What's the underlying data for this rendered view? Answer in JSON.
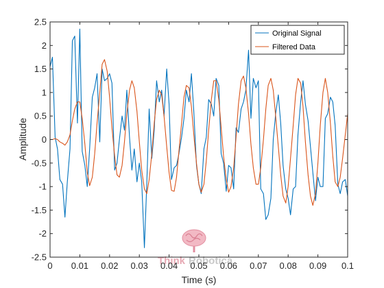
{
  "chart_data": {
    "type": "line",
    "title": "",
    "xlabel": "Time (s)",
    "ylabel": "Amplitude",
    "xlim": [
      0,
      0.1
    ],
    "ylim": [
      -2.5,
      2.5
    ],
    "xticks": [
      0,
      0.01,
      0.02,
      0.03,
      0.04,
      0.05,
      0.06,
      0.07,
      0.08,
      0.09,
      0.1
    ],
    "xtick_labels": [
      "0",
      "0.01",
      "0.02",
      "0.03",
      "0.04",
      "0.05",
      "0.06",
      "0.07",
      "0.08",
      "0.09",
      "0.1"
    ],
    "yticks": [
      -2.5,
      -2,
      -1.5,
      -1,
      -0.5,
      0,
      0.5,
      1,
      1.5,
      2,
      2.5
    ],
    "ytick_labels": [
      "-2.5",
      "-2",
      "-1.5",
      "-1",
      "-0.5",
      "0",
      "0.5",
      "1",
      "1.5",
      "2",
      "2.5"
    ],
    "grid": false,
    "legend_position": "top-right",
    "series": [
      {
        "name": "Original Signal",
        "color": "#0072BD",
        "x": [
          0.0,
          0.0008,
          0.0017,
          0.0025,
          0.0033,
          0.0042,
          0.005,
          0.0058,
          0.0067,
          0.0075,
          0.0083,
          0.0092,
          0.01,
          0.0108,
          0.0117,
          0.0125,
          0.0133,
          0.0142,
          0.015,
          0.0158,
          0.0167,
          0.0175,
          0.0183,
          0.0192,
          0.02,
          0.0208,
          0.0217,
          0.0225,
          0.0233,
          0.0242,
          0.025,
          0.0258,
          0.0267,
          0.0275,
          0.0283,
          0.0292,
          0.03,
          0.0308,
          0.0317,
          0.0325,
          0.0333,
          0.0342,
          0.035,
          0.0358,
          0.0367,
          0.0375,
          0.0383,
          0.0392,
          0.04,
          0.0408,
          0.0417,
          0.0425,
          0.0433,
          0.0442,
          0.045,
          0.0458,
          0.0467,
          0.0475,
          0.0483,
          0.0492,
          0.05,
          0.0508,
          0.0517,
          0.0525,
          0.0533,
          0.0542,
          0.055,
          0.0558,
          0.0567,
          0.0575,
          0.0583,
          0.0592,
          0.06,
          0.0608,
          0.0617,
          0.0625,
          0.0633,
          0.0642,
          0.065,
          0.0658,
          0.0667,
          0.0675,
          0.0683,
          0.0692,
          0.07,
          0.0708,
          0.0717,
          0.0725,
          0.0733,
          0.0742,
          0.075,
          0.0758,
          0.0767,
          0.0775,
          0.0783,
          0.0792,
          0.08,
          0.0808,
          0.0817,
          0.0825,
          0.0833,
          0.0842,
          0.085,
          0.0858,
          0.0867,
          0.0875,
          0.0883,
          0.0892,
          0.09,
          0.0908,
          0.0917,
          0.0925,
          0.0933,
          0.0942,
          0.095,
          0.0958,
          0.0967,
          0.0975,
          0.0983,
          0.0992,
          0.1
        ],
        "y": [
          1.55,
          1.75,
          0.05,
          -0.2,
          -0.85,
          -0.95,
          -1.65,
          -0.9,
          -0.2,
          2.1,
          2.2,
          0.35,
          2.35,
          -0.25,
          -0.55,
          -1.0,
          -0.2,
          0.9,
          1.1,
          1.4,
          -0.05,
          1.5,
          1.25,
          1.3,
          1.4,
          1.2,
          -0.65,
          -0.5,
          0.0,
          0.5,
          0.2,
          1.05,
          0.05,
          -0.65,
          -0.2,
          -0.9,
          -0.5,
          -0.9,
          -2.3,
          -0.95,
          0.65,
          -0.4,
          0.2,
          1.25,
          0.8,
          1.05,
          0.5,
          1.5,
          0.75,
          -0.85,
          -0.6,
          -0.55,
          -0.3,
          0.05,
          0.45,
          1.05,
          0.8,
          1.4,
          0.6,
          -0.55,
          -0.95,
          -1.15,
          -0.2,
          0.05,
          0.85,
          0.75,
          0.5,
          1.3,
          1.15,
          -0.3,
          -0.5,
          -1.1,
          -0.55,
          -0.6,
          -1.05,
          0.25,
          0.15,
          0.65,
          0.8,
          1.05,
          1.9,
          0.45,
          1.3,
          1.1,
          1.25,
          -1.05,
          -1.15,
          -1.7,
          -1.6,
          -1.25,
          0.0,
          0.55,
          0.95,
          0.35,
          -0.55,
          -1.05,
          -1.25,
          -1.6,
          -1.05,
          -1.0,
          0.1,
          0.8,
          1.25,
          0.75,
          0.4,
          -0.15,
          -0.7,
          -1.3,
          -0.8,
          -1.0,
          -1.0,
          0.45,
          0.55,
          0.9,
          0.8,
          0.3,
          -0.95,
          -1.15,
          -0.9,
          -0.85,
          -1.2
        ]
      },
      {
        "name": "Filtered Data",
        "color": "#D95319",
        "x": [
          0.0,
          0.0008,
          0.0017,
          0.0025,
          0.0033,
          0.0042,
          0.005,
          0.0058,
          0.0067,
          0.0075,
          0.0083,
          0.0092,
          0.01,
          0.0108,
          0.0117,
          0.0125,
          0.0133,
          0.0142,
          0.015,
          0.0158,
          0.0167,
          0.0175,
          0.0183,
          0.0192,
          0.02,
          0.0208,
          0.0217,
          0.0225,
          0.0233,
          0.0242,
          0.025,
          0.0258,
          0.0267,
          0.0275,
          0.0283,
          0.0292,
          0.03,
          0.0308,
          0.0317,
          0.0325,
          0.0333,
          0.0342,
          0.035,
          0.0358,
          0.0367,
          0.0375,
          0.0383,
          0.0392,
          0.04,
          0.0408,
          0.0417,
          0.0425,
          0.0433,
          0.0442,
          0.045,
          0.0458,
          0.0467,
          0.0475,
          0.0483,
          0.0492,
          0.05,
          0.0508,
          0.0517,
          0.0525,
          0.0533,
          0.0542,
          0.055,
          0.0558,
          0.0567,
          0.0575,
          0.0583,
          0.0592,
          0.06,
          0.0608,
          0.0617,
          0.0625,
          0.0633,
          0.0642,
          0.065,
          0.0658,
          0.0667,
          0.0675,
          0.0683,
          0.0692,
          0.07,
          0.0708,
          0.0717,
          0.0725,
          0.0733,
          0.0742,
          0.075,
          0.0758,
          0.0767,
          0.0775,
          0.0783,
          0.0792,
          0.08,
          0.0808,
          0.0817,
          0.0825,
          0.0833,
          0.0842,
          0.085,
          0.0858,
          0.0867,
          0.0875,
          0.0883,
          0.0892,
          0.09,
          0.0908,
          0.0917,
          0.0925,
          0.0933,
          0.0942,
          0.095,
          0.0958,
          0.0967,
          0.0975,
          0.0983,
          0.0992,
          0.1
        ],
        "y": [
          0.0,
          0.0,
          0.02,
          0.0,
          -0.05,
          -0.08,
          -0.12,
          -0.05,
          0.1,
          0.4,
          0.65,
          0.8,
          0.8,
          0.45,
          -0.1,
          -0.7,
          -0.98,
          -0.8,
          -0.3,
          0.35,
          1.0,
          1.6,
          1.7,
          1.45,
          0.9,
          0.25,
          -0.35,
          -0.75,
          -0.8,
          -0.55,
          -0.05,
          0.55,
          1.05,
          1.25,
          1.1,
          0.6,
          -0.05,
          -0.65,
          -1.05,
          -1.15,
          -0.85,
          -0.3,
          0.35,
          0.85,
          1.05,
          0.95,
          0.5,
          -0.15,
          -0.7,
          -1.08,
          -1.1,
          -0.8,
          -0.25,
          0.35,
          0.9,
          1.15,
          1.1,
          0.7,
          0.1,
          -0.5,
          -0.95,
          -1.12,
          -0.95,
          -0.45,
          0.2,
          0.85,
          1.25,
          1.25,
          0.85,
          0.25,
          -0.35,
          -0.85,
          -1.12,
          -1.0,
          -0.6,
          0.05,
          0.75,
          1.25,
          1.35,
          1.1,
          0.55,
          -0.1,
          -0.6,
          -0.95,
          -0.95,
          -0.6,
          0.0,
          0.65,
          1.15,
          1.3,
          1.05,
          0.5,
          -0.15,
          -0.75,
          -1.2,
          -1.35,
          -1.0,
          -0.4,
          0.3,
          0.95,
          1.3,
          1.2,
          0.7,
          -0.05,
          -0.75,
          -1.2,
          -1.4,
          -1.15,
          -0.5,
          0.3,
          1.0,
          1.3,
          1.0,
          0.35,
          -0.35,
          -0.9,
          -1.0,
          -0.8,
          -0.4,
          0.1,
          0.55
        ]
      }
    ]
  },
  "watermark": {
    "text_left": "Think",
    "text_right": "Robotica",
    "icon": "brain-icon",
    "colors": {
      "left": "#e7a9b4",
      "right": "#c8c8c8"
    }
  }
}
